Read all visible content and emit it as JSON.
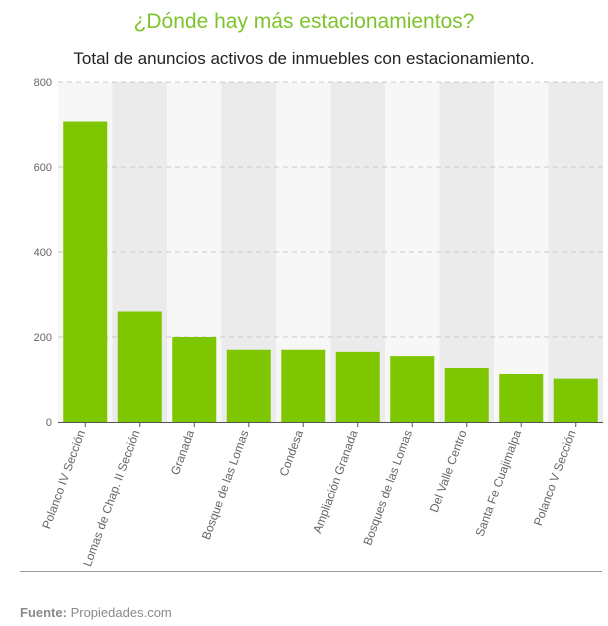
{
  "chart_data": {
    "type": "bar",
    "title": "¿Dónde hay más estacionamientos?",
    "subtitle": "Total de anuncios activos de inmuebles con estacionamiento.",
    "categories": [
      "Polanco IV Sección",
      "Lomas de Chap. II Sección",
      "Granada",
      "Bosque de las Lomas",
      "Condesa",
      "Ampliación Granada",
      "Bosques de las Lomas",
      "Del Valle Centro",
      "Santa Fe Cuajimalpa",
      "Polanco V Sección"
    ],
    "values": [
      707,
      260,
      200,
      170,
      170,
      165,
      155,
      127,
      113,
      102
    ],
    "ylim": [
      0,
      800
    ],
    "yticks": [
      0,
      200,
      400,
      600,
      800
    ],
    "grid": true,
    "legend": "none",
    "bar_color": "#7dc600",
    "band_colors": [
      "#f7f7f7",
      "#ebebeb"
    ]
  },
  "source": {
    "label": "Fuente:",
    "text": "Propiedades.com"
  }
}
